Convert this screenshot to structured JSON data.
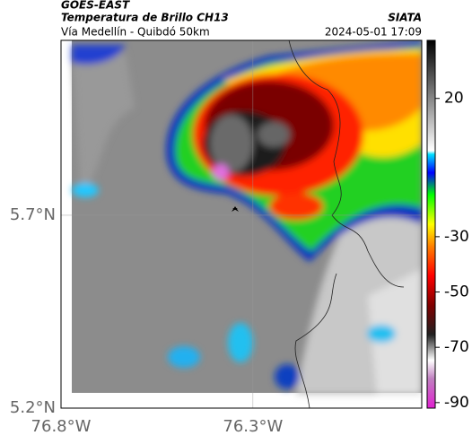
{
  "header": {
    "title": "GOES-EAST",
    "subtitle": "Temperatura de Brillo CH13",
    "route": "Vía Medellín - Quibdó 50km",
    "source": "SIATA",
    "timestamp": "2024-05-01 17:09"
  },
  "map": {
    "xlim": [
      -76.8,
      -75.86
    ],
    "ylim": [
      5.2,
      6.153
    ],
    "xticks": [
      {
        "value": -76.8,
        "label": "76.8°W"
      },
      {
        "value": -76.3,
        "label": "76.3°W"
      }
    ],
    "yticks": [
      {
        "value": 5.7,
        "label": "5.7°N"
      },
      {
        "value": 5.2,
        "label": "5.2°N"
      }
    ]
  },
  "colorbar": {
    "lim": [
      -92,
      41
    ],
    "ticks": [
      20,
      -30,
      -50,
      -70,
      -90
    ]
  }
}
